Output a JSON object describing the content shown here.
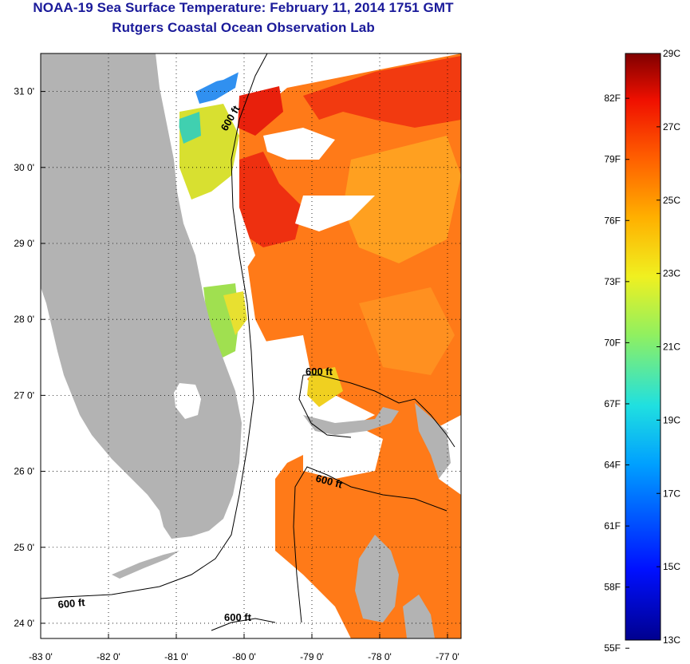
{
  "title": {
    "line1": "NOAA-19 Sea Surface Temperature:  February 11, 2014 1751 GMT",
    "line2": "Rutgers Coastal Ocean Observation Lab"
  },
  "map": {
    "lon_range": [
      -83,
      -76.8
    ],
    "lat_range": [
      23.8,
      31.5
    ],
    "lon_ticks": [
      {
        "value": -83,
        "label": "-83 0'"
      },
      {
        "value": -82,
        "label": "-82 0'"
      },
      {
        "value": -81,
        "label": "-81 0'"
      },
      {
        "value": -80,
        "label": "-80 0'"
      },
      {
        "value": -79,
        "label": "-79 0'"
      },
      {
        "value": -78,
        "label": "-78 0'"
      },
      {
        "value": -77,
        "label": "-77 0'"
      }
    ],
    "lat_ticks": [
      {
        "value": 31,
        "label": "31 0'"
      },
      {
        "value": 30,
        "label": "30 0'"
      },
      {
        "value": 29,
        "label": "29 0'"
      },
      {
        "value": 28,
        "label": "28 0'"
      },
      {
        "value": 27,
        "label": "27 0'"
      },
      {
        "value": 26,
        "label": "26 0'"
      },
      {
        "value": 25,
        "label": "25 0'"
      },
      {
        "value": 24,
        "label": "24 0'"
      }
    ],
    "contour_labels": [
      "600 ft",
      "600 ft",
      "600 ft",
      "600 ft",
      "600 ft"
    ],
    "colors": {
      "land": "#b3b3b3",
      "cloud": "#ffffff",
      "warm": "#ff6a10",
      "hot": "#f22010",
      "mild": "#ff9a20",
      "yellow": "#f0e020",
      "green": "#a0e040",
      "cyan": "#30d0d0",
      "blue": "#2080f0"
    }
  },
  "colorbar": {
    "celsius_labels": [
      "29C",
      "27C",
      "25C",
      "23C",
      "21C",
      "19C",
      "17C",
      "15C",
      "13C"
    ],
    "fahrenheit_labels": [
      "82F",
      "79F",
      "76F",
      "73F",
      "70F",
      "67F",
      "64F",
      "61F",
      "58F",
      "55F"
    ],
    "range_c": [
      13,
      29
    ]
  }
}
